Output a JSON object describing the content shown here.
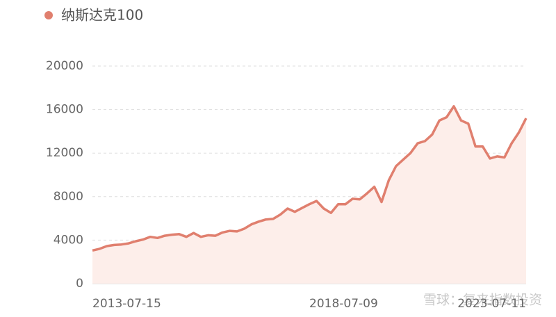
{
  "chart_data": {
    "type": "area",
    "legend_position": "top-left",
    "grid": true,
    "watermark": "雪球：复来指数投资",
    "categories": [
      "2013-07-15",
      null,
      null,
      null,
      null,
      null,
      null,
      null,
      null,
      null,
      null,
      null,
      null,
      null,
      null,
      null,
      null,
      null,
      null,
      null,
      null,
      null,
      null,
      null,
      null,
      null,
      null,
      null,
      null,
      null,
      "2018-07-09",
      null,
      null,
      null,
      null,
      null,
      null,
      null,
      null,
      null,
      null,
      null,
      null,
      null,
      null,
      null,
      null,
      null,
      null,
      null,
      null,
      null,
      null,
      null,
      null,
      null,
      null,
      null,
      null,
      null,
      "2023-07-11"
    ],
    "series": [
      {
        "name": "纳斯达克100",
        "color": "#e07f6e",
        "fill": "#fdeeea",
        "values": [
          3050,
          3200,
          3450,
          3550,
          3600,
          3700,
          3900,
          4050,
          4300,
          4200,
          4400,
          4500,
          4550,
          4300,
          4650,
          4300,
          4450,
          4400,
          4700,
          4850,
          4800,
          5050,
          5450,
          5700,
          5900,
          5950,
          6350,
          6900,
          6600,
          6950,
          7300,
          7600,
          6900,
          6500,
          7300,
          7300,
          7800,
          7750,
          8300,
          8900,
          7500,
          9500,
          10800,
          11400,
          12000,
          12900,
          13100,
          13700,
          15000,
          15300,
          16300,
          15000,
          14700,
          12600,
          12600,
          11500,
          11700,
          11600,
          12900,
          13900,
          15200
        ]
      }
    ],
    "ylim": [
      0,
      20000
    ],
    "yticks": [
      0,
      4000,
      8000,
      12000,
      16000,
      20000
    ]
  }
}
